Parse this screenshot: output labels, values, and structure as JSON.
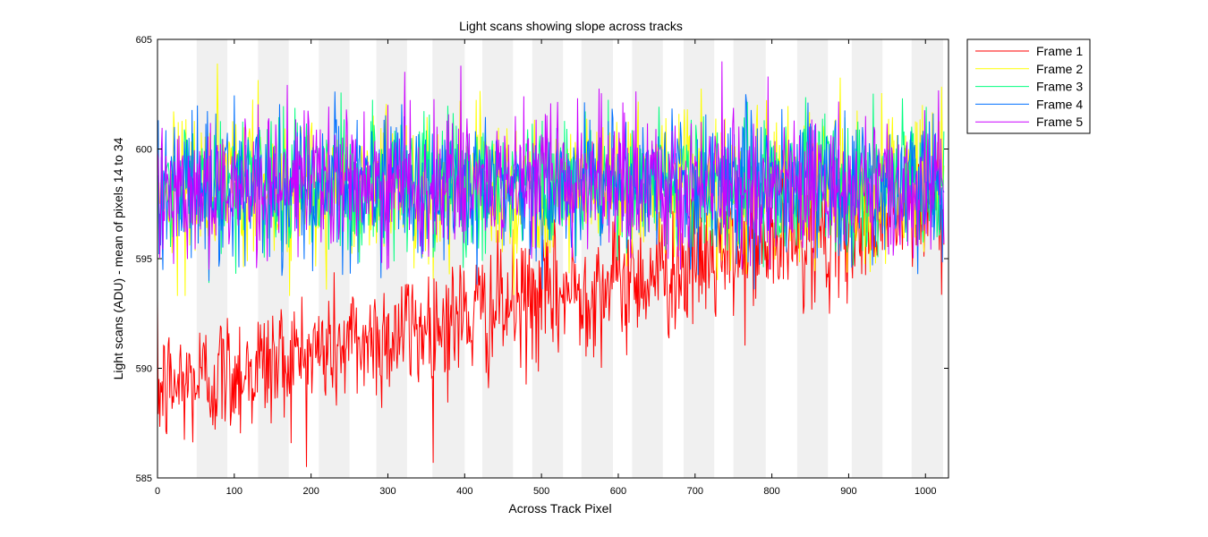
{
  "chart_data": {
    "type": "line",
    "title": "Light scans showing slope across tracks",
    "xlabel": "Across Track Pixel",
    "ylabel": "Light scans (ADU) - mean of pixels 14 to 34",
    "xlim": [
      0,
      1030
    ],
    "ylim": [
      585,
      605
    ],
    "xticks": [
      0,
      100,
      200,
      300,
      400,
      500,
      600,
      700,
      800,
      900,
      1000
    ],
    "yticks": [
      585,
      590,
      595,
      600,
      605
    ],
    "grid": false,
    "legend_position": "outside-top-right",
    "background_bands": {
      "color": "#f0f0f0",
      "ranges": [
        [
          51,
          91
        ],
        [
          131,
          171
        ],
        [
          210,
          250
        ],
        [
          285,
          325
        ],
        [
          358,
          400
        ],
        [
          423,
          463
        ],
        [
          488,
          528
        ],
        [
          552,
          593
        ],
        [
          618,
          658
        ],
        [
          685,
          725
        ],
        [
          750,
          792
        ],
        [
          833,
          873
        ],
        [
          904,
          944
        ],
        [
          982,
          1023
        ]
      ]
    },
    "series": [
      {
        "name": "Frame 1",
        "color": "#ff0000",
        "start": 589.0,
        "end": 597.5,
        "amplitude": 1.5,
        "min": 585.5,
        "max": 600.5
      },
      {
        "name": "Frame 2",
        "color": "#ffff00",
        "start": 598.3,
        "end": 598.3,
        "amplitude": 1.7,
        "min": 593.3,
        "max": 603.9
      },
      {
        "name": "Frame 3",
        "color": "#00ff7f",
        "start": 598.4,
        "end": 598.4,
        "amplitude": 1.6,
        "min": 593.3,
        "max": 603.5
      },
      {
        "name": "Frame 4",
        "color": "#0070ff",
        "start": 598.3,
        "end": 598.3,
        "amplitude": 1.6,
        "min": 593.6,
        "max": 604.3
      },
      {
        "name": "Frame 5",
        "color": "#cc00ff",
        "start": 598.4,
        "end": 598.4,
        "amplitude": 1.6,
        "min": 594.5,
        "max": 604.6
      }
    ]
  }
}
